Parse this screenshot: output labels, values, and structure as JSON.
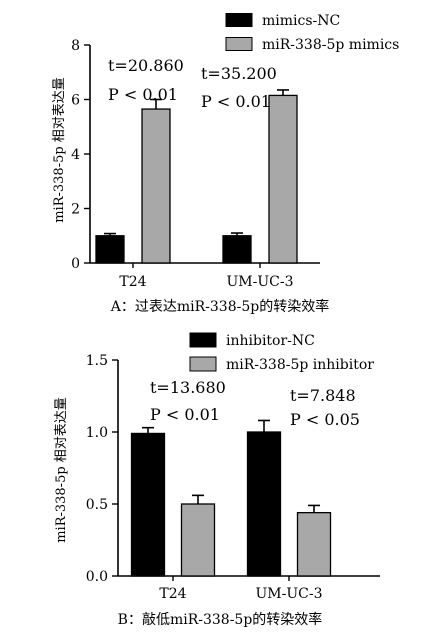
{
  "chart_data": [
    {
      "type": "bar",
      "ylabel": "miR-338-5p 相对表达量",
      "categories": [
        "T24",
        "UM-UC-3"
      ],
      "series": [
        {
          "name": "mimics-NC",
          "values": [
            1.0,
            1.0
          ],
          "errors": [
            0.08,
            0.1
          ],
          "color": "#000000"
        },
        {
          "name": "miR-338-5p mimics",
          "values": [
            5.65,
            6.15
          ],
          "errors": [
            0.35,
            0.2
          ],
          "color": "#a8a8a8"
        }
      ],
      "ylim": [
        0,
        8
      ],
      "yticks": [
        "0",
        "2",
        "4",
        "6",
        "8"
      ],
      "annotations": [
        {
          "category": "T24",
          "t_label": "t=20.860",
          "p_label": "P < 0.01"
        },
        {
          "category": "UM-UC-3",
          "t_label": "t=35.200",
          "p_label": "P < 0.01"
        }
      ],
      "caption": "A：过表达miR-338-5p的转染效率",
      "legend_placement": "top-right",
      "grid": false
    },
    {
      "type": "bar",
      "ylabel": "miR-338-5p 相对表达量",
      "categories": [
        "T24",
        "UM-UC-3"
      ],
      "series": [
        {
          "name": "inhibitor-NC",
          "values": [
            0.99,
            1.0
          ],
          "errors": [
            0.04,
            0.08
          ],
          "color": "#000000"
        },
        {
          "name": "miR-338-5p inhibitor",
          "values": [
            0.5,
            0.44
          ],
          "errors": [
            0.06,
            0.05
          ],
          "color": "#a8a8a8"
        }
      ],
      "ylim": [
        0,
        1.5
      ],
      "yticks": [
        "0.0",
        "0.5",
        "1.0",
        "1.5"
      ],
      "annotations": [
        {
          "category": "T24",
          "t_label": "t=13.680",
          "p_label": "P < 0.01"
        },
        {
          "category": "UM-UC-3",
          "t_label": "t=7.848",
          "p_label": "P < 0.05"
        }
      ],
      "caption": "B：敲低miR-338-5p的转染效率",
      "legend_placement": "top-right",
      "grid": false
    }
  ]
}
